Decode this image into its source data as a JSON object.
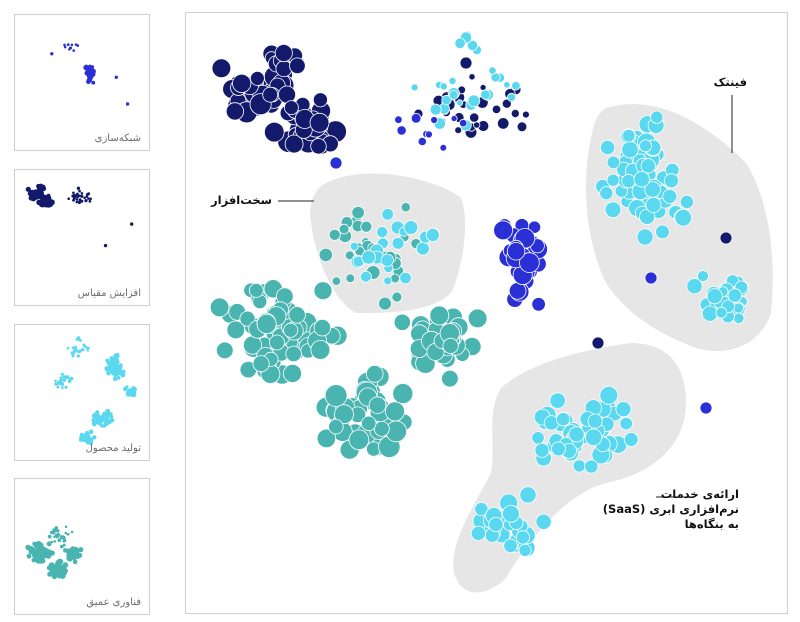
{
  "chart_data": {
    "type": "scatter",
    "description_free": true,
    "colors": {
      "networking": "#2a2fd6",
      "scaling": "#141a6b",
      "product": "#5ad8f0",
      "deeptech": "#49b4b0",
      "group_fill": "#e6e6e6"
    },
    "small_multiples": [
      {
        "key": "networking",
        "label": "شبکه‌سازی"
      },
      {
        "key": "scaling",
        "label": "افزایش مقیاس"
      },
      {
        "key": "product",
        "label": "تولید محصول"
      },
      {
        "key": "deeptech",
        "label": "فناوری عمیق"
      }
    ],
    "annotations": [
      {
        "key": "fintech",
        "text": "فینتک"
      },
      {
        "key": "hardware",
        "text": "سخت‌افزار"
      },
      {
        "key": "saas",
        "lines": [
          "ارائه‌ی خدمات",
          "نرم‌افزاری ابری (SaaS)",
          "به بنگاه‌ها"
        ]
      }
    ]
  }
}
